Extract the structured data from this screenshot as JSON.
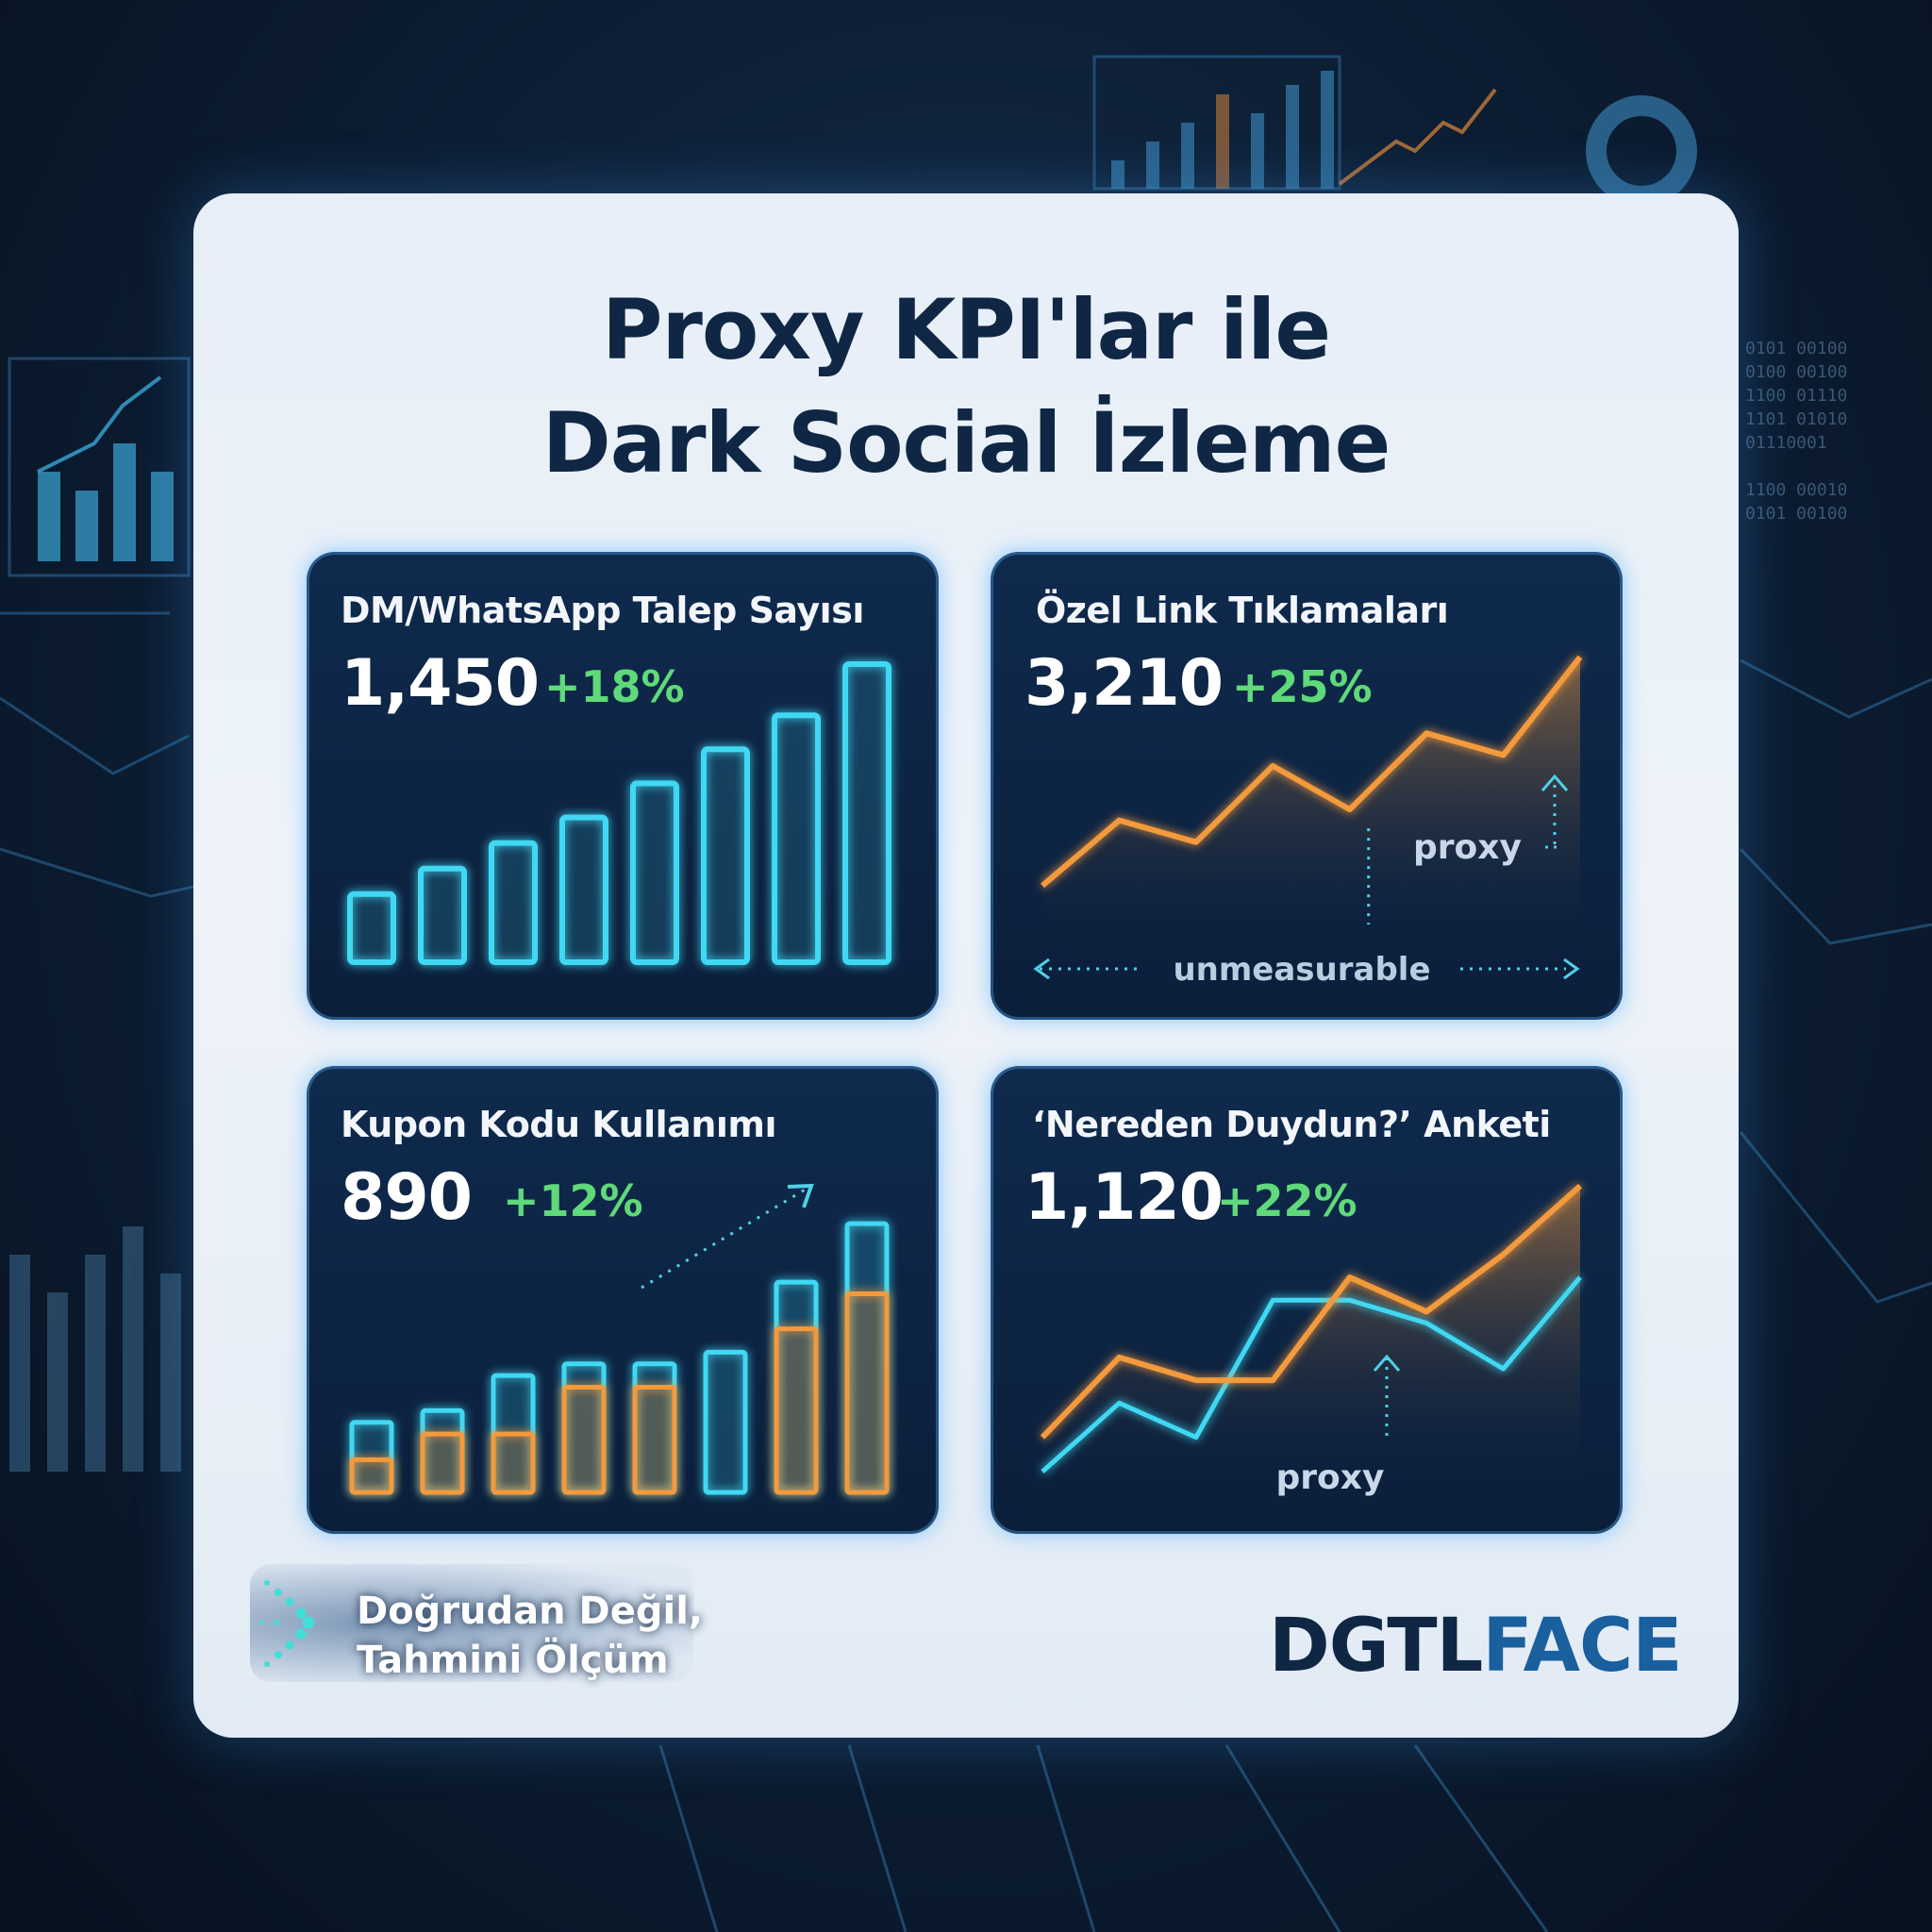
{
  "title": {
    "line1": "Proxy KPI'lar ile",
    "line2": "Dark Social İzleme"
  },
  "panels": [
    {
      "title": "DM/WhatsApp Talep Sayısı",
      "value": "1,450",
      "change": "+18%"
    },
    {
      "title": "Özel Link Tıklamaları",
      "value": "3,210",
      "change": "+25%",
      "annotation_proxy": "proxy",
      "annotation_range": "unmeasurable"
    },
    {
      "title": "Kupon Kodu Kullanımı",
      "value": "890",
      "change": "+12%"
    },
    {
      "title": "‘Nereden Duydun?’ Anketi",
      "value": "1,120",
      "change": "+22%",
      "annotation_proxy": "proxy"
    }
  ],
  "footer": {
    "line1": "Doğrudan Değil,",
    "line2": "Tahmini Ölçüm"
  },
  "logo": {
    "part1": "DGTL",
    "part2": "FACE"
  },
  "colors": {
    "cyan": "#3fd8f2",
    "orange": "#f39a3d",
    "green": "#5fd97a",
    "navy": "#0f2744"
  },
  "icons": {
    "footer": "chevron-right-dots-icon"
  },
  "chart_data": [
    {
      "type": "bar",
      "categories": [
        "1",
        "2",
        "3",
        "4",
        "5",
        "6",
        "7",
        "8"
      ],
      "values": [
        4,
        5.5,
        7,
        8.5,
        10.5,
        12.5,
        14.5,
        17.5
      ],
      "ylim": [
        0,
        18
      ]
    },
    {
      "type": "area",
      "x": [
        1,
        2,
        3,
        4,
        5,
        6,
        7,
        8
      ],
      "values": [
        2,
        5,
        4,
        7.5,
        5.5,
        9,
        8,
        12.5
      ],
      "ylim": [
        0,
        13
      ]
    },
    {
      "type": "bar",
      "categories": [
        "1",
        "2",
        "3",
        "4",
        "5",
        "6",
        "7",
        "8"
      ],
      "series": [
        {
          "values": [
            3,
            3.5,
            5,
            5.5,
            5.5,
            6,
            9,
            11.5
          ]
        },
        {
          "values": [
            1.4,
            2.5,
            2.5,
            4.5,
            4.5,
            0,
            7,
            8.5
          ]
        }
      ],
      "ylim": [
        0,
        13
      ]
    },
    {
      "type": "line",
      "x": [
        1,
        2,
        3,
        4,
        5,
        6,
        7,
        8
      ],
      "series": [
        {
          "values": [
            1.5,
            5,
            4,
            4,
            8.5,
            7,
            9.5,
            12.5
          ]
        },
        {
          "values": [
            0,
            3,
            1.5,
            7.5,
            7.5,
            6.5,
            4.5,
            8.5
          ]
        }
      ],
      "ylim": [
        0,
        13
      ]
    }
  ]
}
